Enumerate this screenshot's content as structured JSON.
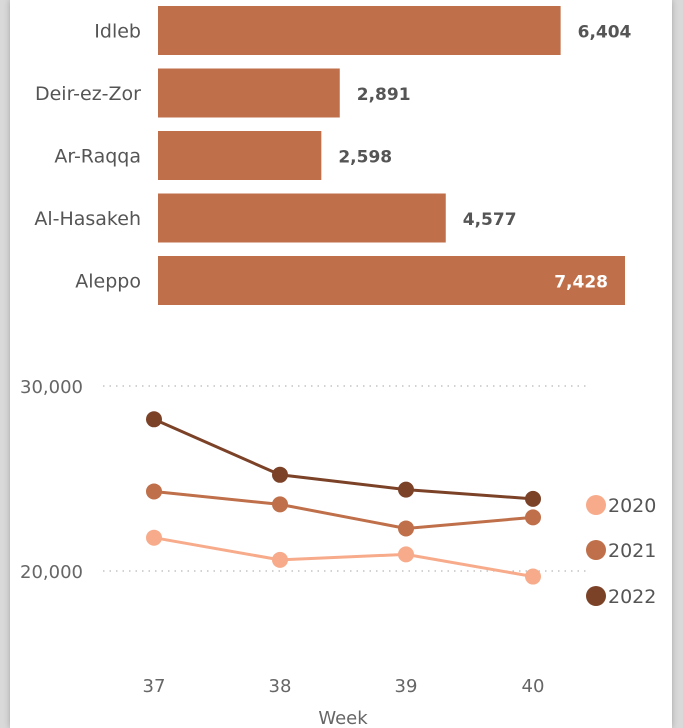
{
  "chart_data": [
    {
      "type": "bar",
      "orientation": "horizontal",
      "categories": [
        "Idleb",
        "Deir-ez-Zor",
        "Ar-Raqqa",
        "Al-Hasakeh",
        "Aleppo"
      ],
      "values": [
        6404,
        2891,
        2598,
        4577,
        7428
      ],
      "value_labels": [
        "6,404",
        "2,891",
        "2,598",
        "4,577",
        "7,428"
      ],
      "color": "#bf6f49",
      "xlim": [
        0,
        7428
      ]
    },
    {
      "type": "line",
      "x": [
        37,
        38,
        39,
        40
      ],
      "x_tick_labels": [
        "37",
        "38",
        "39",
        "40"
      ],
      "xlabel": "Week",
      "ylabel": "",
      "y_tick_labels": [
        "30,000",
        "20,000"
      ],
      "y_ticks": [
        30000,
        20000
      ],
      "ylim": [
        14000,
        31500
      ],
      "grid": "dotted horizontal",
      "legend": "right",
      "series": [
        {
          "name": "2020",
          "color": "#f7ab8a",
          "values": [
            21800,
            20600,
            20900,
            19700
          ]
        },
        {
          "name": "2021",
          "color": "#bf6f49",
          "values": [
            24300,
            23600,
            22300,
            22900
          ]
        },
        {
          "name": "2022",
          "color": "#7b4228",
          "values": [
            28200,
            25200,
            24400,
            23900
          ]
        }
      ]
    }
  ]
}
